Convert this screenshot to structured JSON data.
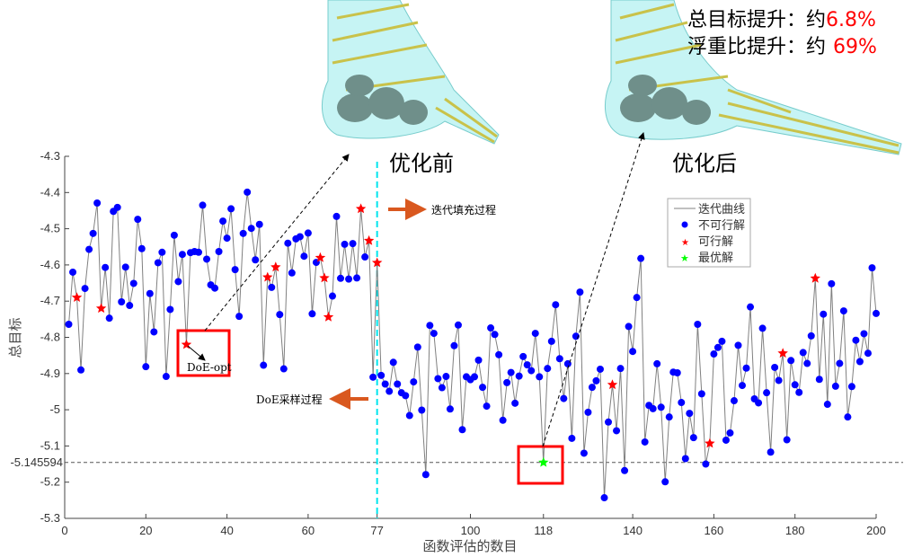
{
  "header": {
    "line1_prefix": "总目标提升：约",
    "line1_value": "6.8%",
    "line2_prefix": "浮重比提升：约",
    "line2_value": "69%",
    "before_label": "优化前",
    "after_label": "优化后"
  },
  "annotations": {
    "infill": "迭代填充过程",
    "doe": "DoE采样过程",
    "doe_opt": "DoE-opt"
  },
  "colors": {
    "infeasible": "#0000ff",
    "feasible": "#ff0000",
    "best": "#00ff00",
    "line": "#808080",
    "split": "#00e5ee",
    "arrow": "#d9581f",
    "box": "#ff0000"
  },
  "chart_data": {
    "type": "line",
    "title": "",
    "xlabel": "函数评估的数目",
    "ylabel": "总目标",
    "xlim": [
      0,
      200
    ],
    "ylim": [
      -5.3,
      -4.3
    ],
    "xticks": [
      "0",
      "20",
      "40",
      "60",
      "77",
      "100",
      "118",
      "140",
      "160",
      "180",
      "200"
    ],
    "yticks": [
      "-4.3",
      "-4.4",
      "-4.5",
      "-4.6",
      "-4.7",
      "-4.8",
      "-4.9",
      "-5",
      "-5.1",
      "-5.2",
      "-5.3"
    ],
    "best_value_label": "-5.145594",
    "best_value": -5.145594,
    "best_x": 118,
    "doe_end_x": 77,
    "doe_opt_x": 30,
    "legend": {
      "placement": "upper-right",
      "items": [
        "迭代曲线",
        "不可行解",
        "可行解",
        "最优解"
      ]
    },
    "x_start": 1,
    "values": [
      -4.764,
      -4.62,
      -4.69,
      -4.89,
      -4.665,
      -4.557,
      -4.513,
      -4.429,
      -4.72,
      -4.607,
      -4.747,
      -4.452,
      -4.441,
      -4.702,
      -4.606,
      -4.712,
      -4.651,
      -4.474,
      -4.555,
      -4.881,
      -4.679,
      -4.785,
      -4.594,
      -4.565,
      -4.908,
      -4.723,
      -4.518,
      -4.646,
      -4.571,
      -4.82,
      -4.566,
      -4.563,
      -4.565,
      -4.435,
      -4.584,
      -4.655,
      -4.664,
      -4.563,
      -4.479,
      -4.526,
      -4.445,
      -4.613,
      -4.742,
      -4.513,
      -4.399,
      -4.499,
      -4.586,
      -4.488,
      -4.877,
      -4.634,
      -4.662,
      -4.606,
      -4.737,
      -4.887,
      -4.54,
      -4.622,
      -4.528,
      -4.522,
      -4.576,
      -4.512,
      -4.735,
      -4.593,
      -4.58,
      -4.636,
      -4.744,
      -4.686,
      -4.466,
      -4.637,
      -4.543,
      -4.639,
      -4.541,
      -4.636,
      -4.445,
      -4.578,
      -4.533,
      -4.91,
      -4.594,
      -4.905,
      -4.929,
      -4.949,
      -4.869,
      -4.929,
      -4.953,
      -4.961,
      -5.016,
      -4.923,
      -4.827,
      -5.001,
      -5.179,
      -4.767,
      -4.789,
      -4.914,
      -4.939,
      -4.908,
      -4.998,
      -4.823,
      -4.766,
      -5.055,
      -4.909,
      -4.917,
      -4.909,
      -4.863,
      -4.938,
      -4.99,
      -4.774,
      -4.792,
      -4.848,
      -5.029,
      -4.925,
      -4.897,
      -4.982,
      -4.907,
      -4.853,
      -4.876,
      -4.892,
      -4.789,
      -4.909,
      -5.145594,
      -4.886,
      -4.811,
      -4.71,
      -4.859,
      -4.969,
      -4.873,
      -5.079,
      -4.797,
      -4.675,
      -5.12,
      -5.007,
      -4.938,
      -4.92,
      -4.888,
      -5.243,
      -5.034,
      -4.931,
      -5.058,
      -4.886,
      -5.168,
      -4.77,
      -4.839,
      -4.69,
      -4.582,
      -5.089,
      -4.988,
      -4.997,
      -4.873,
      -4.993,
      -5.199,
      -5.02,
      -4.896,
      -4.898,
      -4.98,
      -5.135,
      -5.01,
      -5.077,
      -4.764,
      -4.956,
      -5.15,
      -5.093,
      -4.846,
      -4.828,
      -4.811,
      -5.084,
      -5.064,
      -4.975,
      -4.822,
      -4.933,
      -4.885,
      -4.716,
      -4.97,
      -4.981,
      -4.775,
      -4.953,
      -5.117,
      -4.883,
      -4.919,
      -4.844,
      -5.083,
      -4.864,
      -4.931,
      -4.952,
      -4.842,
      -4.872,
      -4.796,
      -4.637,
      -4.916,
      -4.736,
      -4.985,
      -4.652,
      -4.935,
      -4.872,
      -4.727,
      -5.02,
      -4.936,
      -4.808,
      -4.867,
      -4.79,
      -4.844,
      -4.608,
      -4.734
    ],
    "feasible_x": [
      3,
      9,
      30,
      50,
      52,
      63,
      64,
      65,
      73,
      75,
      77,
      135,
      159,
      177,
      185
    ]
  }
}
